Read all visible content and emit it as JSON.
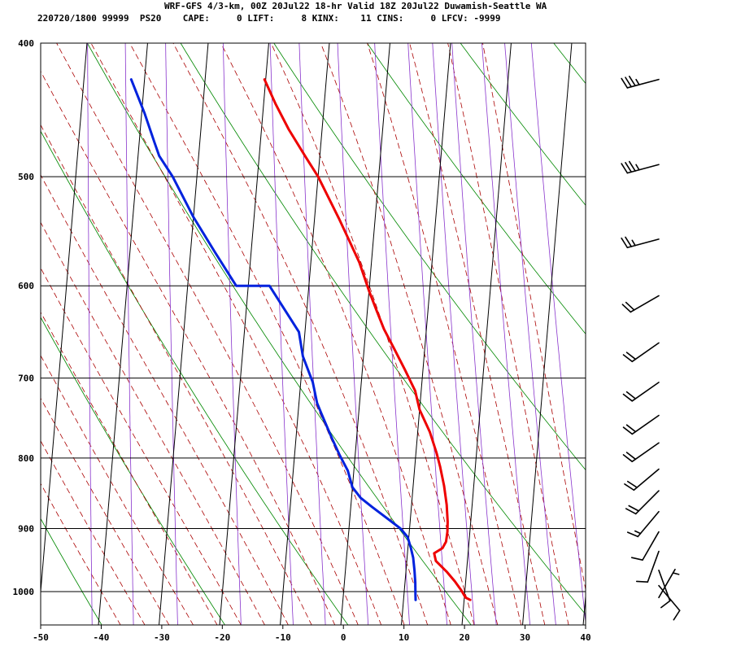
{
  "header": {
    "title": "WRF-GFS 4/3-km, 00Z 20Jul22 18-hr Valid 18Z 20Jul22 Duwamish-Seattle WA",
    "indices": "220720/1800 99999  PS20    CAPE:     0 LIFT:     8 KINX:    11 CINS:     0 LFCV: -9999"
  },
  "colors": {
    "temperature": "#ee0000",
    "dewpoint": "#0022dd",
    "dry_adiabat": "#008800",
    "moist_adiabat": "#aa0000",
    "mixing_ratio": "#8833cc",
    "grid": "#000000",
    "barb": "#000000"
  },
  "chart_data": {
    "type": "line",
    "subtype": "skew-T log-P sounding",
    "x_ticks": [
      -50,
      -40,
      -30,
      -20,
      -10,
      0,
      10,
      20,
      30,
      40
    ],
    "x_tick_labels": [
      "-50",
      "-40",
      "-30",
      "-20",
      "-10",
      "0",
      "10",
      "20",
      "30",
      "40"
    ],
    "xlim": [
      -50,
      40
    ],
    "p_ticks": [
      400,
      500,
      600,
      700,
      800,
      900,
      1000
    ],
    "p_tick_labels": [
      "400",
      "500",
      "600",
      "700",
      "800",
      "900",
      "1000"
    ],
    "plim": [
      400,
      1030
    ],
    "y_scale": "log-pressure",
    "grid": true,
    "series": [
      {
        "key": "temperature",
        "points": [
          [
            -20.2,
            425
          ],
          [
            -18,
            443
          ],
          [
            -15.5,
            462
          ],
          [
            -12.3,
            484
          ],
          [
            -10,
            500
          ],
          [
            -6,
            536
          ],
          [
            -4,
            556
          ],
          [
            -2,
            577
          ],
          [
            0,
            605
          ],
          [
            1.5,
            625
          ],
          [
            3,
            645
          ],
          [
            5,
            667
          ],
          [
            7,
            690
          ],
          [
            9,
            715
          ],
          [
            10,
            738
          ],
          [
            12,
            766
          ],
          [
            13.4,
            793
          ],
          [
            14.2,
            812
          ],
          [
            15.1,
            838
          ],
          [
            15.8,
            865
          ],
          [
            16.2,
            890
          ],
          [
            16.3,
            905
          ],
          [
            16.2,
            920
          ],
          [
            15.7,
            930
          ],
          [
            14.4,
            938
          ],
          [
            14.8,
            950
          ],
          [
            16.8,
            968
          ],
          [
            18.2,
            983
          ],
          [
            19.4,
            998
          ],
          [
            20.2,
            1010
          ],
          [
            21,
            1014
          ]
        ]
      },
      {
        "key": "dewpoint",
        "points": [
          [
            -42.2,
            425
          ],
          [
            -39.5,
            450
          ],
          [
            -37.5,
            472
          ],
          [
            -36.5,
            483
          ],
          [
            -34,
            500
          ],
          [
            -30,
            535
          ],
          [
            -26,
            567
          ],
          [
            -22,
            600
          ],
          [
            -16.5,
            600
          ],
          [
            -11,
            648
          ],
          [
            -10,
            675
          ],
          [
            -8,
            705
          ],
          [
            -7,
            730
          ],
          [
            -6,
            745
          ],
          [
            -4,
            775
          ],
          [
            -2.5,
            797
          ],
          [
            -1,
            817
          ],
          [
            0,
            840
          ],
          [
            1.5,
            855
          ],
          [
            3.5,
            868
          ],
          [
            6.5,
            887
          ],
          [
            8.5,
            900
          ],
          [
            9.8,
            913
          ],
          [
            10.5,
            930
          ],
          [
            11,
            945
          ],
          [
            11.4,
            965
          ],
          [
            11.7,
            985
          ],
          [
            11.9,
            1005
          ],
          [
            12,
            1014
          ]
        ]
      }
    ],
    "wind_barbs": [
      {
        "p": 425,
        "dir_deg": 255,
        "speed_kt": 35
      },
      {
        "p": 490,
        "dir_deg": 255,
        "speed_kt": 35
      },
      {
        "p": 555,
        "dir_deg": 255,
        "speed_kt": 25
      },
      {
        "p": 610,
        "dir_deg": 240,
        "speed_kt": 20
      },
      {
        "p": 660,
        "dir_deg": 235,
        "speed_kt": 20
      },
      {
        "p": 705,
        "dir_deg": 235,
        "speed_kt": 20
      },
      {
        "p": 745,
        "dir_deg": 235,
        "speed_kt": 20
      },
      {
        "p": 780,
        "dir_deg": 235,
        "speed_kt": 20
      },
      {
        "p": 815,
        "dir_deg": 230,
        "speed_kt": 20
      },
      {
        "p": 845,
        "dir_deg": 225,
        "speed_kt": 20
      },
      {
        "p": 875,
        "dir_deg": 220,
        "speed_kt": 15
      },
      {
        "p": 905,
        "dir_deg": 210,
        "speed_kt": 10
      },
      {
        "p": 935,
        "dir_deg": 200,
        "speed_kt": 10
      },
      {
        "p": 965,
        "dir_deg": 160,
        "speed_kt": 10
      },
      {
        "p": 990,
        "dir_deg": 140,
        "speed_kt": 10
      },
      {
        "p": 1010,
        "dir_deg": 30,
        "speed_kt": 5
      }
    ]
  }
}
